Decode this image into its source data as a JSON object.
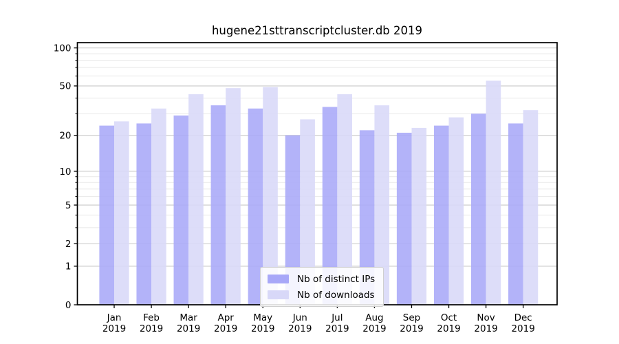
{
  "chart_data": {
    "type": "bar",
    "title": "hugene21sttranscriptcluster.db 2019",
    "categories": [
      "Jan",
      "Feb",
      "Mar",
      "Apr",
      "May",
      "Jun",
      "Jul",
      "Aug",
      "Sep",
      "Oct",
      "Nov",
      "Dec"
    ],
    "category_year": "2019",
    "series": [
      {
        "name": "Nb of distinct IPs",
        "color": "#a8a8f8",
        "values": [
          24,
          25,
          29,
          35,
          33,
          20,
          34,
          22,
          21,
          24,
          30,
          25
        ]
      },
      {
        "name": "Nb of downloads",
        "color": "#d8d8f8",
        "values": [
          26,
          33,
          43,
          48,
          49,
          27,
          43,
          35,
          23,
          28,
          55,
          32
        ]
      }
    ],
    "yscale": "log1p",
    "ylim": [
      0,
      110
    ],
    "yticks": [
      0,
      1,
      2,
      5,
      10,
      20,
      50,
      100
    ],
    "minor_yticks": [
      3,
      4,
      6,
      7,
      8,
      9,
      30,
      40,
      60,
      70,
      80,
      90
    ],
    "grid": true,
    "legend_position": "bottom-center-inside",
    "colors": {
      "axis": "#000000",
      "grid_major": "#c9c9c9",
      "grid_minor": "#e8e8e8",
      "tick_label": "#000000"
    }
  }
}
